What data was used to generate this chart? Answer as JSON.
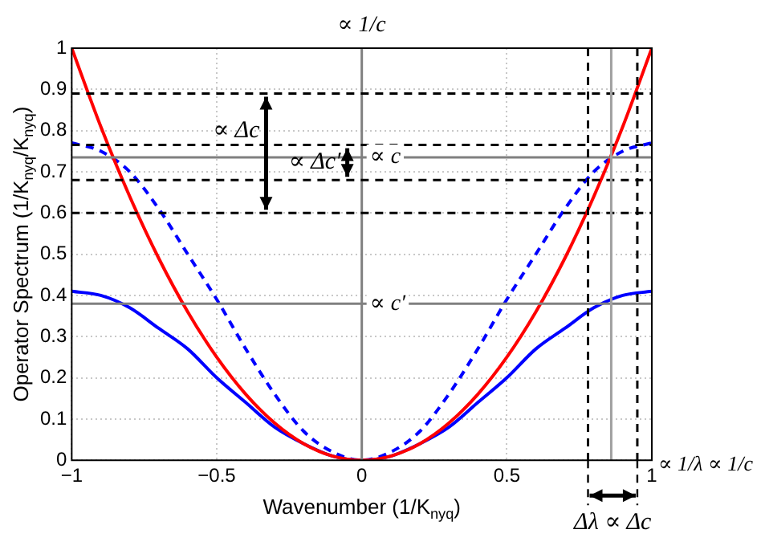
{
  "chart_data": {
    "type": "line",
    "xlabel": "Wavenumber (1/K$_{nyq}$)",
    "ylabel": "Operator Spectrum (1/K$_{nyq}$/K$_{nyq}$)",
    "x": [
      -1,
      -0.9,
      -0.8,
      -0.7,
      -0.6,
      -0.5,
      -0.4,
      -0.3,
      -0.2,
      -0.1,
      0,
      0.1,
      0.2,
      0.3,
      0.4,
      0.5,
      0.6,
      0.7,
      0.8,
      0.9,
      1
    ],
    "series": [
      {
        "color": "#ff0000",
        "line_style": "solid",
        "values": [
          1,
          0.81,
          0.64,
          0.49,
          0.36,
          0.25,
          0.16,
          0.09,
          0.04,
          0.01,
          0,
          0.01,
          0.04,
          0.09,
          0.16,
          0.25,
          0.36,
          0.49,
          0.64,
          0.81,
          1
        ]
      },
      {
        "color": "#0000ff",
        "line_style": "dashed",
        "values": [
          0.77,
          0.75,
          0.7,
          0.61,
          0.5,
          0.39,
          0.27,
          0.16,
          0.07,
          0.02,
          0,
          0.02,
          0.07,
          0.16,
          0.27,
          0.39,
          0.5,
          0.61,
          0.7,
          0.75,
          0.77
        ]
      },
      {
        "color": "#0000ff",
        "line_style": "solid",
        "values": [
          0.41,
          0.4,
          0.37,
          0.32,
          0.27,
          0.2,
          0.14,
          0.08,
          0.04,
          0.01,
          0,
          0.01,
          0.04,
          0.08,
          0.14,
          0.2,
          0.27,
          0.32,
          0.37,
          0.4,
          0.41
        ]
      }
    ],
    "xlim": [
      -1,
      1
    ],
    "xticks": [
      {
        "value": -1,
        "label": "−1"
      },
      {
        "value": -0.5,
        "label": "−0.5"
      },
      0,
      0.5,
      1
    ],
    "ylim": [
      0,
      1
    ],
    "yticks": [
      0,
      0.1,
      0.2,
      0.3,
      0.4,
      0.5,
      0.6,
      0.7,
      0.8,
      0.9,
      1
    ],
    "grid": true,
    "marker": "none",
    "ref_lines": [
      {
        "axis": "x",
        "value": 0,
        "label": "∝ 1/c",
        "color": "#808080",
        "line_style": "solid"
      },
      {
        "axis": "y",
        "value": 0.89,
        "color": "#000000",
        "line_style": "dashed"
      },
      {
        "axis": "y",
        "value": 0.765,
        "color": "#000000",
        "line_style": "dashed"
      },
      {
        "axis": "y",
        "value": 0.68,
        "color": "#000000",
        "line_style": "dashed"
      },
      {
        "axis": "y",
        "value": 0.6,
        "color": "#000000",
        "line_style": "dashed"
      },
      {
        "axis": "y",
        "value": 0.735,
        "label": "∝ c",
        "color": "#808080",
        "line_style": "solid"
      },
      {
        "axis": "y",
        "value": 0.38,
        "label": "∝ c′",
        "color": "#808080",
        "line_style": "solid"
      },
      {
        "axis": "x",
        "value": 0.78,
        "color": "#000000",
        "line_style": "dashed"
      },
      {
        "axis": "x",
        "value": 0.86,
        "color": "#a0a0a0",
        "line_style": "solid"
      },
      {
        "axis": "x",
        "value": 0.95,
        "color": "#000000",
        "line_style": "dashed"
      }
    ],
    "annotations": [
      {
        "text": "∝ Δc",
        "x": -0.33,
        "y": 0.89
      },
      {
        "text": "∝ Δc′",
        "x": -0.05,
        "y": 0.765
      },
      "∝ 1/λ ∝ 1/c",
      "Δλ ∝ Δc"
    ]
  }
}
